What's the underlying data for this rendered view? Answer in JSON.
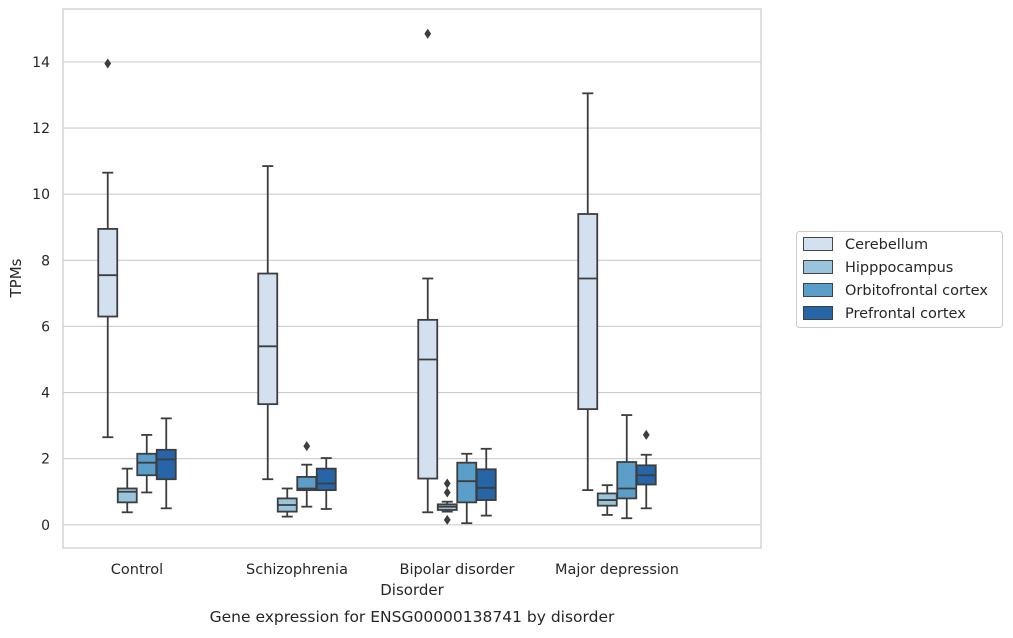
{
  "chart_data": {
    "type": "box",
    "title": "Gene expression for ENSG00000138741 by disorder",
    "xlabel": "Disorder",
    "ylabel": "TPMs",
    "ylim": [
      -0.7,
      15.6
    ],
    "yticks": [
      0,
      2,
      4,
      6,
      8,
      10,
      12,
      14
    ],
    "grid": "horizontal",
    "legend_position": "right",
    "categories": [
      "Control",
      "Schizophrenia",
      "Bipolar disorder",
      "Major depression"
    ],
    "series": [
      {
        "name": "Cerebellum",
        "color": "#d2e0f0",
        "boxes": [
          {
            "whislo": 2.65,
            "q1": 6.3,
            "med": 7.55,
            "q3": 8.95,
            "whishi": 10.65,
            "fliers": [
              13.95
            ]
          },
          {
            "whislo": 1.38,
            "q1": 3.65,
            "med": 5.4,
            "q3": 7.6,
            "whishi": 10.85,
            "fliers": []
          },
          {
            "whislo": 0.38,
            "q1": 1.4,
            "med": 5.0,
            "q3": 6.2,
            "whishi": 7.45,
            "fliers": [
              14.85
            ]
          },
          {
            "whislo": 1.05,
            "q1": 3.5,
            "med": 7.45,
            "q3": 9.4,
            "whishi": 13.05,
            "fliers": []
          }
        ]
      },
      {
        "name": "Hipppocampus",
        "color": "#9ac3dc",
        "boxes": [
          {
            "whislo": 0.38,
            "q1": 0.68,
            "med": 1.0,
            "q3": 1.1,
            "whishi": 1.7,
            "fliers": []
          },
          {
            "whislo": 0.25,
            "q1": 0.4,
            "med": 0.6,
            "q3": 0.8,
            "whishi": 1.1,
            "fliers": []
          },
          {
            "whislo": 0.4,
            "q1": 0.45,
            "med": 0.55,
            "q3": 0.62,
            "whishi": 0.7,
            "fliers": [
              1.25,
              0.98,
              0.15
            ]
          },
          {
            "whislo": 0.3,
            "q1": 0.58,
            "med": 0.75,
            "q3": 0.95,
            "whishi": 1.2,
            "fliers": []
          }
        ]
      },
      {
        "name": "Orbitofrontal cortex",
        "color": "#5b9ec9",
        "boxes": [
          {
            "whislo": 0.98,
            "q1": 1.5,
            "med": 1.88,
            "q3": 2.15,
            "whishi": 2.72,
            "fliers": []
          },
          {
            "whislo": 0.55,
            "q1": 1.05,
            "med": 1.1,
            "q3": 1.45,
            "whishi": 1.82,
            "fliers": [
              2.38
            ]
          },
          {
            "whislo": 0.05,
            "q1": 0.68,
            "med": 1.32,
            "q3": 1.88,
            "whishi": 2.15,
            "fliers": []
          },
          {
            "whislo": 0.2,
            "q1": 0.8,
            "med": 1.1,
            "q3": 1.9,
            "whishi": 3.32,
            "fliers": []
          }
        ]
      },
      {
        "name": "Prefrontal cortex",
        "color": "#2565a8",
        "boxes": [
          {
            "whislo": 0.5,
            "q1": 1.38,
            "med": 1.98,
            "q3": 2.27,
            "whishi": 3.22,
            "fliers": []
          },
          {
            "whislo": 0.48,
            "q1": 1.05,
            "med": 1.25,
            "q3": 1.7,
            "whishi": 2.02,
            "fliers": []
          },
          {
            "whislo": 0.28,
            "q1": 0.75,
            "med": 1.12,
            "q3": 1.68,
            "whishi": 2.3,
            "fliers": []
          },
          {
            "whislo": 0.5,
            "q1": 1.22,
            "med": 1.5,
            "q3": 1.8,
            "whishi": 2.12,
            "fliers": [
              2.72
            ]
          }
        ]
      }
    ]
  }
}
